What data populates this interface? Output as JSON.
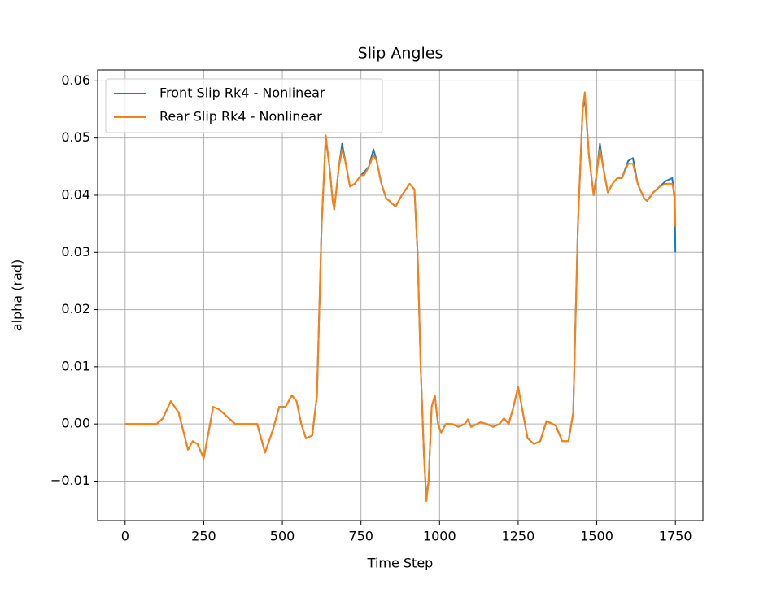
{
  "chart_data": {
    "type": "line",
    "title": "Slip Angles",
    "x_label": "Time Step",
    "y_label": "alpha (rad)",
    "x": [
      0,
      50,
      100,
      120,
      145,
      170,
      200,
      215,
      230,
      250,
      270,
      280,
      300,
      350,
      420,
      445,
      470,
      490,
      510,
      530,
      545,
      560,
      575,
      595,
      610,
      625,
      638,
      650,
      660,
      665,
      680,
      690,
      700,
      715,
      730,
      750,
      760,
      775,
      790,
      800,
      815,
      830,
      840,
      860,
      880,
      905,
      920,
      930,
      940,
      950,
      958,
      965,
      975,
      985,
      995,
      1005,
      1020,
      1040,
      1060,
      1080,
      1090,
      1100,
      1130,
      1150,
      1170,
      1190,
      1205,
      1220,
      1235,
      1250,
      1265,
      1280,
      1300,
      1320,
      1340,
      1360,
      1370,
      1390,
      1410,
      1425,
      1440,
      1455,
      1462,
      1475,
      1490,
      1500,
      1510,
      1520,
      1535,
      1550,
      1565,
      1580,
      1600,
      1615,
      1630,
      1650,
      1660,
      1680,
      1700,
      1720,
      1740,
      1748,
      1750
    ],
    "series": [
      {
        "name": "Front Slip Rk4 - Nonlinear",
        "color": "#1f77b4",
        "values": [
          0,
          0,
          0,
          0.001,
          0.004,
          0.002,
          -0.0045,
          -0.003,
          -0.0035,
          -0.006,
          0,
          0.003,
          0.0025,
          0,
          0,
          -0.005,
          -0.001,
          0.003,
          0.003,
          0.005,
          0.004,
          0,
          -0.0025,
          -0.002,
          0.005,
          0.035,
          0.05,
          0.045,
          0.039,
          0.0375,
          0.045,
          0.049,
          0.046,
          0.0415,
          0.042,
          0.0435,
          0.044,
          0.045,
          0.048,
          0.046,
          0.042,
          0.0395,
          0.039,
          0.038,
          0.04,
          0.042,
          0.041,
          0.03,
          0.01,
          -0.005,
          -0.013,
          -0.01,
          0.003,
          0.005,
          0,
          -0.0015,
          0,
          0,
          -0.0005,
          0,
          0.0008,
          -0.0005,
          0.0003,
          0,
          -0.0005,
          0,
          0.001,
          0,
          0.003,
          0.0065,
          0.002,
          -0.0025,
          -0.0035,
          -0.003,
          0.0005,
          0,
          -0.0003,
          -0.003,
          -0.003,
          0.002,
          0.035,
          0.055,
          0.057,
          0.047,
          0.04,
          0.044,
          0.049,
          0.045,
          0.0405,
          0.042,
          0.043,
          0.043,
          0.046,
          0.0465,
          0.042,
          0.0395,
          0.039,
          0.0405,
          0.0415,
          0.0425,
          0.043,
          0.039,
          0.03
        ]
      },
      {
        "name": "Rear Slip Rk4 - Nonlinear",
        "color": "#ff7f0e",
        "values": [
          0,
          0,
          0,
          0.001,
          0.004,
          0.002,
          -0.0045,
          -0.003,
          -0.0035,
          -0.006,
          0,
          0.003,
          0.0025,
          0,
          0,
          -0.005,
          -0.001,
          0.003,
          0.003,
          0.005,
          0.004,
          0,
          -0.0025,
          -0.002,
          0.005,
          0.035,
          0.0505,
          0.045,
          0.039,
          0.0375,
          0.045,
          0.048,
          0.046,
          0.0415,
          0.042,
          0.0435,
          0.0435,
          0.045,
          0.047,
          0.046,
          0.042,
          0.0395,
          0.039,
          0.038,
          0.04,
          0.042,
          0.041,
          0.03,
          0.01,
          -0.005,
          -0.0135,
          -0.01,
          0.003,
          0.005,
          0,
          -0.0015,
          0,
          0,
          -0.0005,
          0,
          0.0008,
          -0.0005,
          0.0003,
          0,
          -0.0005,
          0,
          0.001,
          0,
          0.003,
          0.0065,
          0.002,
          -0.0025,
          -0.0035,
          -0.003,
          0.0005,
          0,
          -0.0003,
          -0.003,
          -0.003,
          0.002,
          0.035,
          0.055,
          0.058,
          0.047,
          0.04,
          0.044,
          0.048,
          0.045,
          0.0405,
          0.042,
          0.043,
          0.043,
          0.0455,
          0.0455,
          0.042,
          0.0395,
          0.039,
          0.0405,
          0.0415,
          0.042,
          0.042,
          0.04,
          0.0345
        ]
      }
    ],
    "xlim": [
      -87.5,
      1837.5
    ],
    "xticks": [
      0,
      250,
      500,
      750,
      1000,
      1250,
      1500,
      1750
    ],
    "ylim": [
      -0.0169,
      0.0619
    ],
    "yticks": [
      {
        "value": -0.01,
        "label": "−0.01"
      },
      {
        "value": 0,
        "label": "0.00"
      },
      {
        "value": 0.01,
        "label": "0.01"
      },
      {
        "value": 0.02,
        "label": "0.02"
      },
      {
        "value": 0.03,
        "label": "0.03"
      },
      {
        "value": 0.04,
        "label": "0.04"
      },
      {
        "value": 0.05,
        "label": "0.05"
      },
      {
        "value": 0.06,
        "label": "0.06"
      }
    ],
    "grid": true,
    "legend": "upper-left"
  }
}
